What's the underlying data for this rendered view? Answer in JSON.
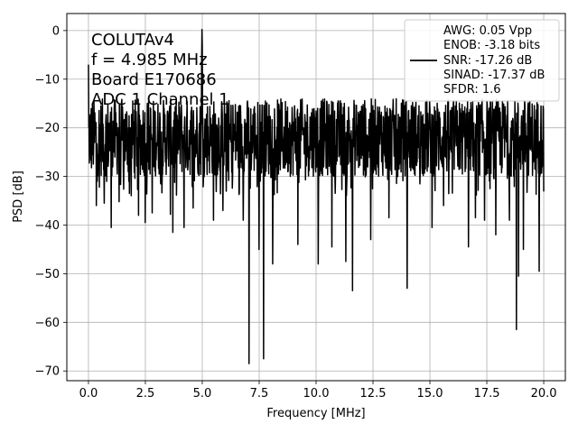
{
  "chart_data": {
    "type": "line",
    "xlabel": "Frequency [MHz]",
    "ylabel": "PSD [dB]",
    "xlim": [
      -0.95,
      20.95
    ],
    "ylim": [
      -72,
      3.5
    ],
    "xticks": [
      0.0,
      2.5,
      5.0,
      7.5,
      10.0,
      12.5,
      15.0,
      17.5,
      20.0
    ],
    "xtick_labels": [
      "0.0",
      "2.5",
      "5.0",
      "7.5",
      "10.0",
      "12.5",
      "15.0",
      "17.5",
      "20.0"
    ],
    "yticks": [
      0,
      -10,
      -20,
      -30,
      -40,
      -50,
      -60,
      -70
    ],
    "ytick_labels": [
      "0",
      "−10",
      "−20",
      "−30",
      "−40",
      "−50",
      "−60",
      "−70"
    ],
    "grid": true,
    "legend_position": "top-right",
    "annotation_lines": [
      "COLUTAv4",
      "f = 4.985 MHz",
      "Board E170686",
      "ADC 1 Channel 1"
    ],
    "legend_lines": [
      "AWG: 0.05 Vpp",
      "ENOB: -3.18 bits",
      "SNR: -17.26 dB",
      "SINAD: -17.37 dB",
      "SFDR: 1.6"
    ],
    "series": [
      {
        "color": "#000000",
        "peak": {
          "x": 4.985,
          "y": 0.2
        },
        "noise_floor": {
          "mean": -21,
          "band_low": -30,
          "band_high": -14
        },
        "dips": [
          {
            "x": 0.35,
            "y": -36.0
          },
          {
            "x": 0.7,
            "y": -35.5
          },
          {
            "x": 1.0,
            "y": -40.5
          },
          {
            "x": 1.35,
            "y": -35.2
          },
          {
            "x": 1.8,
            "y": -33.5
          },
          {
            "x": 2.2,
            "y": -38.0
          },
          {
            "x": 2.5,
            "y": -39.5
          },
          {
            "x": 2.8,
            "y": -37.5
          },
          {
            "x": 3.6,
            "y": -37.8
          },
          {
            "x": 3.7,
            "y": -41.5
          },
          {
            "x": 4.2,
            "y": -40.5
          },
          {
            "x": 4.6,
            "y": -36.5
          },
          {
            "x": 5.5,
            "y": -39.0
          },
          {
            "x": 5.9,
            "y": -37.0
          },
          {
            "x": 6.8,
            "y": -39.0
          },
          {
            "x": 7.05,
            "y": -68.5
          },
          {
            "x": 7.5,
            "y": -45.0
          },
          {
            "x": 7.7,
            "y": -67.5
          },
          {
            "x": 8.1,
            "y": -48.0
          },
          {
            "x": 9.2,
            "y": -44.0
          },
          {
            "x": 10.1,
            "y": -48.0
          },
          {
            "x": 10.7,
            "y": -44.5
          },
          {
            "x": 11.3,
            "y": -47.5
          },
          {
            "x": 11.6,
            "y": -53.5
          },
          {
            "x": 12.4,
            "y": -43.0
          },
          {
            "x": 13.2,
            "y": -38.5
          },
          {
            "x": 14.0,
            "y": -53.0
          },
          {
            "x": 15.1,
            "y": -40.5
          },
          {
            "x": 15.6,
            "y": -36.0
          },
          {
            "x": 16.7,
            "y": -44.5
          },
          {
            "x": 17.0,
            "y": -38.5
          },
          {
            "x": 17.4,
            "y": -39.0
          },
          {
            "x": 17.9,
            "y": -42.0
          },
          {
            "x": 18.5,
            "y": -39.0
          },
          {
            "x": 18.8,
            "y": -61.5
          },
          {
            "x": 18.9,
            "y": -50.5
          },
          {
            "x": 19.1,
            "y": -45.0
          },
          {
            "x": 19.8,
            "y": -49.5
          }
        ]
      }
    ]
  }
}
